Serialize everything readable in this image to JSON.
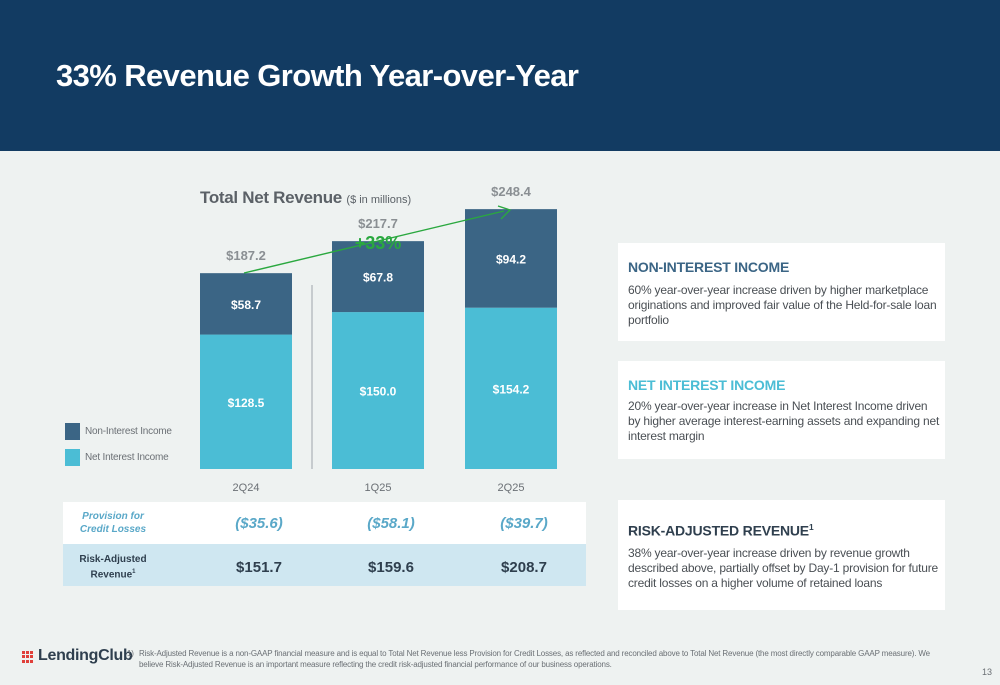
{
  "slide": {
    "title": "33% Revenue Growth Year-over-Year",
    "page_number": "13"
  },
  "chart_data": {
    "type": "bar",
    "stacked": true,
    "title": "Total Net Revenue",
    "subtitle": "($ in millions)",
    "categories": [
      "2Q24",
      "1Q25",
      "2Q25"
    ],
    "series": [
      {
        "name": "Net Interest Income",
        "values": [
          128.5,
          150.0,
          154.2
        ],
        "labels": [
          "$128.5",
          "$150.0",
          "$154.2"
        ],
        "color": "#4bbdd5"
      },
      {
        "name": "Non-Interest Income",
        "values": [
          58.7,
          67.8,
          94.2
        ],
        "labels": [
          "$58.7",
          "$67.8",
          "$94.2"
        ],
        "color": "#3b6585"
      }
    ],
    "totals": [
      187.2,
      217.7,
      248.4
    ],
    "total_labels": [
      "$187.2",
      "$217.7",
      "$248.4"
    ],
    "ylim": [
      0,
      260
    ],
    "growth_annotation": {
      "text": "+33%",
      "color": "#2aa83f"
    },
    "legend": [
      "Non-Interest Income",
      "Net Interest Income"
    ],
    "legend_position": "left"
  },
  "table": {
    "rows": [
      {
        "label_lines": [
          "Provision for",
          "Credit Losses"
        ],
        "superscript": "",
        "values": [
          "($35.6)",
          "($58.1)",
          "($39.7)"
        ]
      },
      {
        "label_lines": [
          "Risk-Adjusted",
          "Revenue"
        ],
        "superscript": "1",
        "values": [
          "$151.7",
          "$159.6",
          "$208.7"
        ]
      }
    ]
  },
  "cards": [
    {
      "title": "NON-INTEREST INCOME",
      "title_sup": "",
      "color": "#3b6585",
      "body": "60% year-over-year increase driven by higher marketplace originations and improved fair value of the Held-for-sale loan portfolio"
    },
    {
      "title": "NET INTEREST INCOME",
      "title_sup": "",
      "color": "#4bbdd5",
      "body": "20% year-over-year increase in Net Interest Income driven by higher average interest-earning assets and expanding net interest margin"
    },
    {
      "title": "RISK-ADJUSTED REVENUE",
      "title_sup": "1",
      "color": "#2f3f4e",
      "body": "38% year-over-year increase driven by revenue growth described above, partially offset by Day-1 provision for future credit losses on a higher volume of retained loans"
    }
  ],
  "footnote": {
    "number": "1)",
    "text": "Risk-Adjusted Revenue is a non-GAAP financial measure and is equal to Total Net Revenue less Provision for Credit Losses, as reflected and reconciled above to Total Net Revenue (the most directly comparable GAAP measure). We believe Risk-Adjusted Revenue is an important measure reflecting the credit risk-adjusted financial performance of our business operations."
  },
  "logo": {
    "text": "LendingClub",
    "color": "#e0403a"
  }
}
